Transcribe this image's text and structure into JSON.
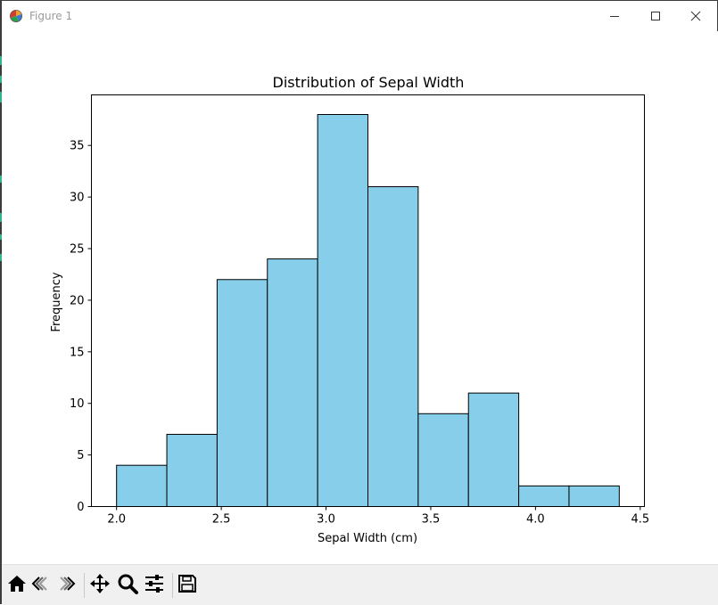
{
  "window": {
    "title": "Figure 1",
    "icons": {
      "app": "matplotlib-figure-icon",
      "minimize": "minimize-icon",
      "maximize": "maximize-icon",
      "close": "close-icon"
    }
  },
  "toolbar": {
    "tools": [
      {
        "name": "home",
        "icon": "home-icon"
      },
      {
        "name": "back",
        "icon": "back-arrow-icon"
      },
      {
        "name": "forward",
        "icon": "forward-arrow-icon"
      },
      {
        "name": "pan",
        "icon": "pan-move-icon"
      },
      {
        "name": "zoom",
        "icon": "zoom-magnifier-icon"
      },
      {
        "name": "configure",
        "icon": "configure-subplots-icon"
      },
      {
        "name": "save",
        "icon": "save-floppy-icon"
      }
    ]
  },
  "chart_data": {
    "type": "bar",
    "title": "Distribution of Sepal Width",
    "xlabel": "Sepal Width (cm)",
    "ylabel": "Frequency",
    "bin_edges": [
      2.0,
      2.24,
      2.48,
      2.72,
      2.96,
      3.2,
      3.44,
      3.68,
      3.92,
      4.16,
      4.4
    ],
    "values": [
      4,
      7,
      22,
      24,
      38,
      31,
      9,
      11,
      2,
      2
    ],
    "xlim": [
      1.88,
      4.52
    ],
    "ylim": [
      0,
      39.9
    ],
    "xticks": [
      2.0,
      2.5,
      3.0,
      3.5,
      4.0,
      4.5
    ],
    "xtick_labels": [
      "2.0",
      "2.5",
      "3.0",
      "3.5",
      "4.0",
      "4.5"
    ],
    "yticks": [
      0,
      5,
      10,
      15,
      20,
      25,
      30,
      35
    ],
    "ytick_labels": [
      "0",
      "5",
      "10",
      "15",
      "20",
      "25",
      "30",
      "35"
    ],
    "bar_color": "#87ceeb",
    "edge_color": "#000000",
    "grid": false,
    "legend": "none"
  }
}
